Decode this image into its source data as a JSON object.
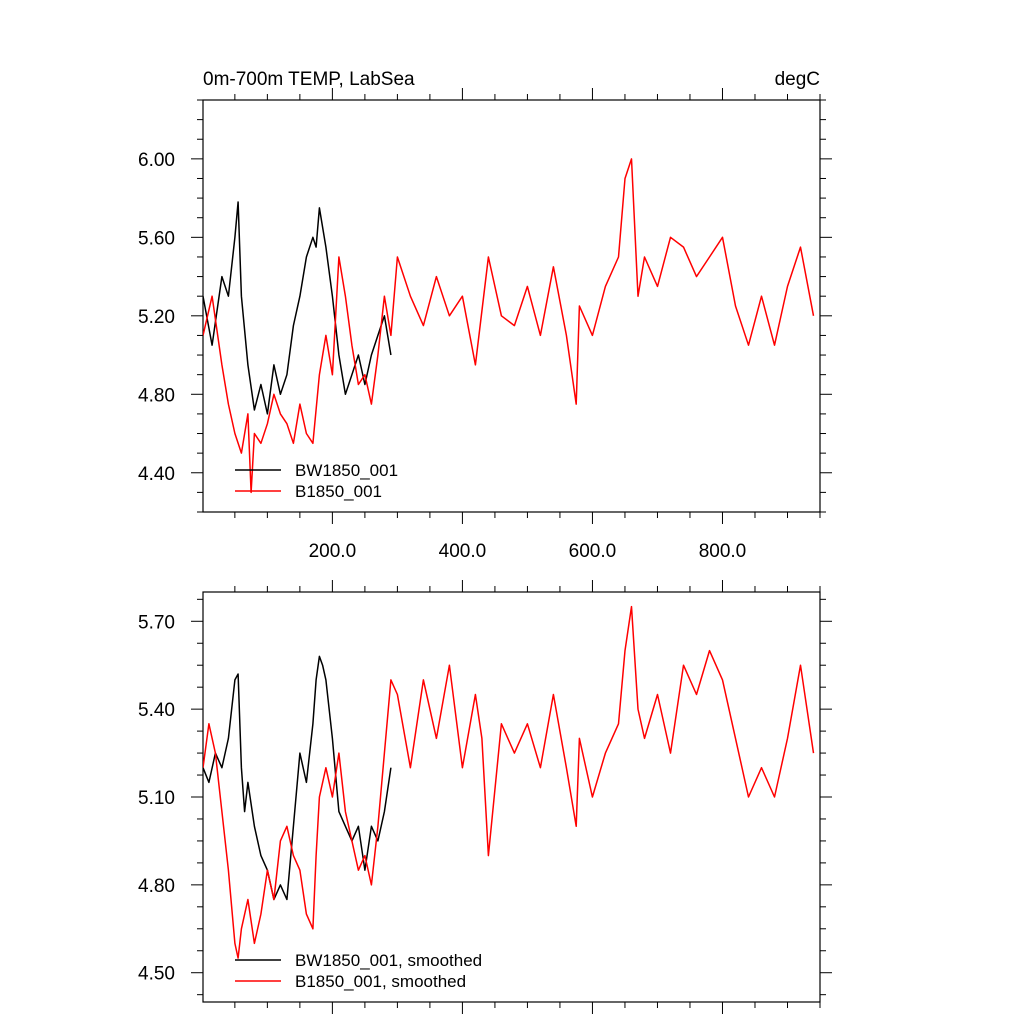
{
  "chart_data": [
    {
      "type": "line",
      "title": "0m-700m TEMP, LabSea",
      "units": "degC",
      "xlim": [
        1,
        950
      ],
      "ylim": [
        4.2,
        6.3
      ],
      "xticks": [
        200,
        400,
        600,
        800
      ],
      "xtick_labels": [
        "200.0",
        "400.0",
        "600.0",
        "800.0"
      ],
      "yticks": [
        4.4,
        4.8,
        5.2,
        5.6,
        6.0
      ],
      "ytick_labels": [
        "4.40",
        "4.80",
        "5.20",
        "5.60",
        "6.00"
      ],
      "legend_position": "bottom-left",
      "series": [
        {
          "name": "BW1850_001",
          "color": "#000000",
          "x": [
            1,
            15,
            30,
            40,
            50,
            55,
            60,
            70,
            80,
            90,
            100,
            110,
            120,
            130,
            140,
            150,
            160,
            170,
            175,
            180,
            190,
            200,
            210,
            220,
            230,
            240,
            250,
            260,
            270,
            280,
            290
          ],
          "values": [
            5.3,
            5.05,
            5.4,
            5.3,
            5.6,
            5.78,
            5.3,
            4.95,
            4.72,
            4.85,
            4.7,
            4.95,
            4.8,
            4.9,
            5.15,
            5.3,
            5.5,
            5.6,
            5.55,
            5.75,
            5.55,
            5.3,
            5.0,
            4.8,
            4.9,
            5.0,
            4.85,
            5.0,
            5.1,
            5.2,
            5.0
          ]
        },
        {
          "name": "B1850_001",
          "color": "#ff0000",
          "x": [
            1,
            15,
            30,
            40,
            50,
            60,
            70,
            75,
            80,
            90,
            100,
            110,
            120,
            130,
            140,
            150,
            160,
            170,
            180,
            190,
            200,
            210,
            220,
            230,
            240,
            250,
            260,
            270,
            280,
            290,
            300,
            320,
            340,
            360,
            380,
            400,
            420,
            440,
            460,
            480,
            500,
            520,
            540,
            560,
            575,
            580,
            600,
            620,
            640,
            650,
            660,
            670,
            680,
            700,
            720,
            740,
            760,
            780,
            800,
            820,
            840,
            860,
            880,
            900,
            920,
            940
          ],
          "values": [
            5.1,
            5.3,
            4.95,
            4.75,
            4.6,
            4.5,
            4.7,
            4.3,
            4.6,
            4.55,
            4.65,
            4.8,
            4.7,
            4.65,
            4.55,
            4.75,
            4.6,
            4.55,
            4.9,
            5.1,
            4.9,
            5.5,
            5.3,
            5.05,
            4.85,
            4.9,
            4.75,
            5.0,
            5.3,
            5.1,
            5.5,
            5.3,
            5.15,
            5.4,
            5.2,
            5.3,
            4.95,
            5.5,
            5.2,
            5.15,
            5.35,
            5.1,
            5.45,
            5.1,
            4.75,
            5.25,
            5.1,
            5.35,
            5.5,
            5.9,
            6.0,
            5.3,
            5.5,
            5.35,
            5.6,
            5.55,
            5.4,
            5.5,
            5.6,
            5.25,
            5.05,
            5.3,
            5.05,
            5.35,
            5.55,
            5.2
          ]
        }
      ]
    },
    {
      "type": "line",
      "title": "",
      "xlim": [
        1,
        950
      ],
      "ylim": [
        4.4,
        5.8
      ],
      "xticks": [
        200,
        400,
        600,
        800
      ],
      "yticks": [
        4.5,
        4.8,
        5.1,
        5.4,
        5.7
      ],
      "ytick_labels": [
        "4.50",
        "4.80",
        "5.10",
        "5.40",
        "5.70"
      ],
      "legend_position": "bottom-left",
      "series": [
        {
          "name": "BW1850_001, smoothed",
          "color": "#000000",
          "x": [
            1,
            10,
            20,
            30,
            40,
            50,
            55,
            60,
            65,
            70,
            80,
            90,
            100,
            110,
            120,
            130,
            140,
            150,
            160,
            170,
            175,
            180,
            185,
            190,
            200,
            210,
            220,
            230,
            240,
            250,
            260,
            270,
            280,
            290
          ],
          "values": [
            5.2,
            5.15,
            5.25,
            5.2,
            5.3,
            5.5,
            5.52,
            5.2,
            5.05,
            5.15,
            5.0,
            4.9,
            4.85,
            4.75,
            4.8,
            4.75,
            5.0,
            5.25,
            5.15,
            5.35,
            5.5,
            5.58,
            5.55,
            5.5,
            5.3,
            5.05,
            5.0,
            4.95,
            5.0,
            4.85,
            5.0,
            4.95,
            5.05,
            5.2
          ]
        },
        {
          "name": "B1850_001, smoothed",
          "color": "#ff0000",
          "x": [
            1,
            10,
            20,
            30,
            40,
            50,
            55,
            60,
            70,
            80,
            90,
            100,
            110,
            120,
            130,
            140,
            150,
            160,
            170,
            175,
            180,
            190,
            200,
            210,
            220,
            230,
            240,
            250,
            260,
            270,
            280,
            290,
            300,
            320,
            340,
            360,
            380,
            400,
            420,
            430,
            440,
            460,
            480,
            500,
            520,
            540,
            560,
            575,
            580,
            600,
            620,
            640,
            650,
            660,
            670,
            680,
            700,
            720,
            740,
            760,
            780,
            800,
            820,
            840,
            860,
            880,
            900,
            920,
            940
          ],
          "values": [
            5.2,
            5.35,
            5.25,
            5.05,
            4.85,
            4.6,
            4.55,
            4.65,
            4.75,
            4.6,
            4.7,
            4.85,
            4.75,
            4.95,
            5.0,
            4.9,
            4.85,
            4.7,
            4.65,
            4.9,
            5.1,
            5.2,
            5.1,
            5.25,
            5.05,
            4.95,
            4.85,
            4.9,
            4.8,
            5.0,
            5.25,
            5.5,
            5.45,
            5.2,
            5.5,
            5.3,
            5.55,
            5.2,
            5.45,
            5.3,
            4.9,
            5.35,
            5.25,
            5.35,
            5.2,
            5.45,
            5.2,
            5.0,
            5.3,
            5.1,
            5.25,
            5.35,
            5.6,
            5.75,
            5.4,
            5.3,
            5.45,
            5.25,
            5.55,
            5.45,
            5.6,
            5.5,
            5.3,
            5.1,
            5.2,
            5.1,
            5.3,
            5.55,
            5.25
          ]
        }
      ]
    }
  ]
}
